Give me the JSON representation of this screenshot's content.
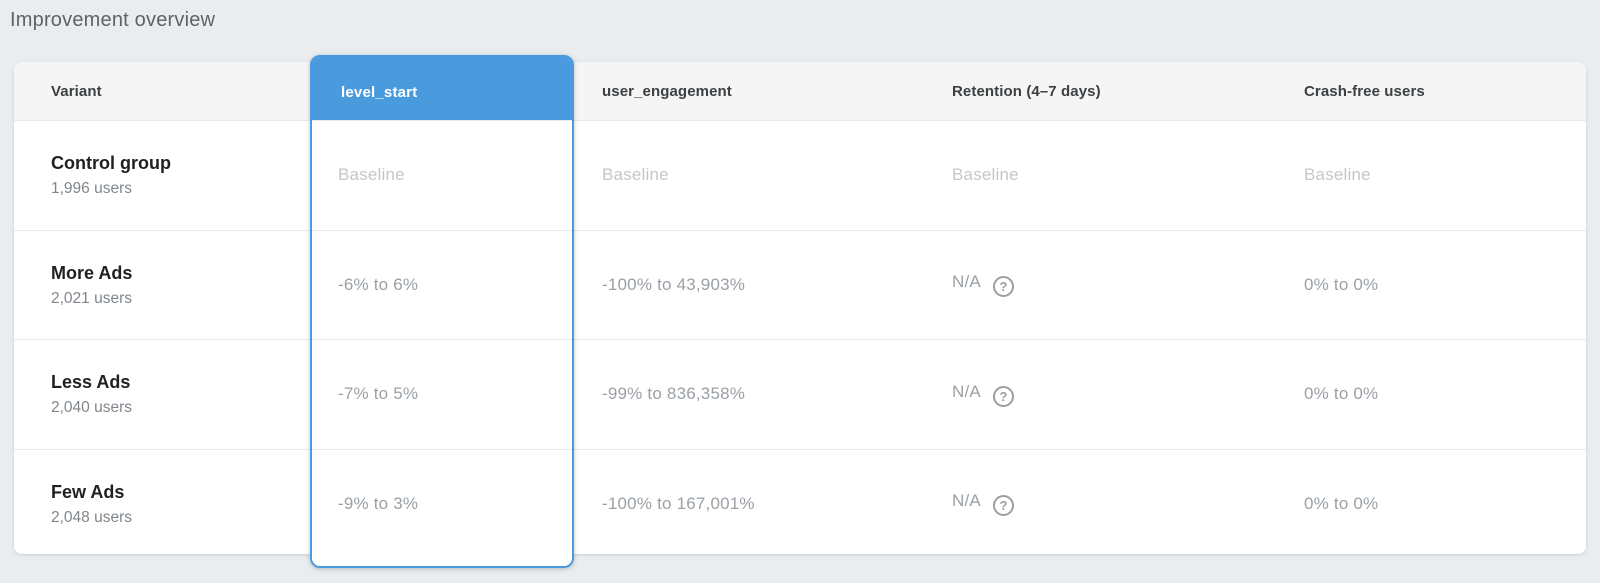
{
  "page": {
    "title": "Improvement overview",
    "background_color": "#eaedf0",
    "accent_color": "#4a9ade"
  },
  "table": {
    "columns": [
      {
        "label": "Variant",
        "selected": false
      },
      {
        "label": "level_start",
        "selected": true
      },
      {
        "label": "user_engagement",
        "selected": false
      },
      {
        "label": "Retention (4–7 days)",
        "selected": false
      },
      {
        "label": "Crash-free users",
        "selected": false
      }
    ],
    "help_icon": "?",
    "rows": [
      {
        "variant": "Control group",
        "users": "1,996 users",
        "level_start": "Baseline",
        "user_engagement": "Baseline",
        "retention": {
          "text": "Baseline",
          "help": false
        },
        "crash_free": "Baseline",
        "is_baseline": true
      },
      {
        "variant": "More Ads",
        "users": "2,021 users",
        "level_start": "-6% to 6%",
        "user_engagement": "-100% to 43,903%",
        "retention": {
          "text": "N/A",
          "help": true
        },
        "crash_free": "0% to 0%",
        "is_baseline": false
      },
      {
        "variant": "Less Ads",
        "users": "2,040 users",
        "level_start": "-7% to 5%",
        "user_engagement": "-99% to 836,358%",
        "retention": {
          "text": "N/A",
          "help": true
        },
        "crash_free": "0% to 0%",
        "is_baseline": false
      },
      {
        "variant": "Few Ads",
        "users": "2,048 users",
        "level_start": "-9% to 3%",
        "user_engagement": "-100% to 167,001%",
        "retention": {
          "text": "N/A",
          "help": true
        },
        "crash_free": "0% to 0%",
        "is_baseline": false
      }
    ]
  }
}
